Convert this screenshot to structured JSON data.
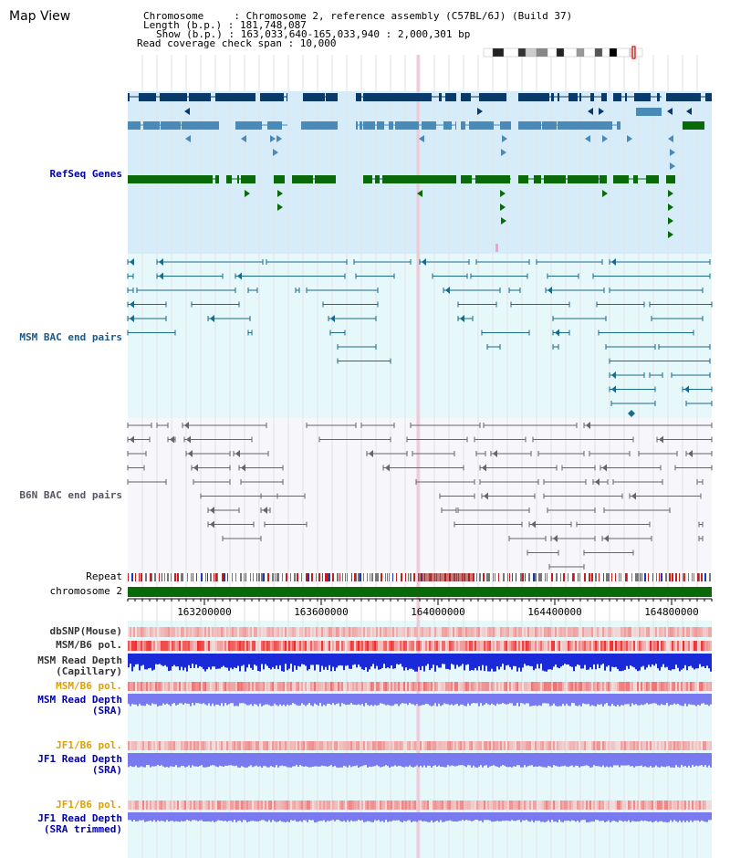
{
  "header": {
    "title": "Map View",
    "chromosome_line": "Chromosome     : Chromosome 2, reference assembly (C57BL/6J) (Build 37)",
    "length_line": "Length (b.p.) : 181,748,087",
    "show_line": "Show (b.p.) : 163,033,640-165,033,940 : 2,000,301 bp",
    "span_line": "Read coverage check span : 10,000"
  },
  "tracks": {
    "refseq": "RefSeq Genes",
    "msm_bac": "MSM BAC end pairs",
    "b6n_bac": "B6N BAC end pairs",
    "repeat": "Repeat",
    "chromosome": "chromosome 2",
    "dbsnp": "dbSNP(Mouse)",
    "msm_pol": "MSM/B6 pol.",
    "msm_depth_cap_1": "MSM Read Depth",
    "msm_depth_cap_2": "(Capillary)",
    "msm_pol_2": "MSM/B6 pol.",
    "msm_depth_sra_1": "MSM Read Depth",
    "msm_depth_sra_2": "(SRA)",
    "jf1_pol": "JF1/B6 pol.",
    "jf1_depth_1": "JF1 Read Depth",
    "jf1_depth_2": "(SRA)",
    "jf1_pol_2": "JF1/B6 pol.",
    "jf1_trim_1": "JF1 Read Depth",
    "jf1_trim_2": "(SRA trimmed)"
  },
  "axis": {
    "ticks": [
      "163200000",
      "163600000",
      "164000000",
      "164400000",
      "164800000"
    ]
  },
  "colors": {
    "refseq_dark": "#0a3a6a",
    "refseq_mid": "#4a8ab8",
    "refseq_green": "#0a6a0a",
    "msm_line": "#1a6a8a",
    "b6n_line": "#666666",
    "depth_blue": "#1a2ad8",
    "depth_violet": "#7a7af0"
  }
}
